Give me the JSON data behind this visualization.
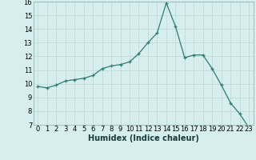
{
  "xlabel": "Humidex (Indice chaleur)",
  "ylabel": "",
  "x": [
    0,
    1,
    2,
    3,
    4,
    5,
    6,
    7,
    8,
    9,
    10,
    11,
    12,
    13,
    14,
    15,
    16,
    17,
    18,
    19,
    20,
    21,
    22,
    23
  ],
  "y": [
    9.8,
    9.7,
    9.9,
    10.2,
    10.3,
    10.4,
    10.6,
    11.1,
    11.3,
    11.4,
    11.6,
    12.2,
    13.0,
    13.7,
    15.9,
    14.2,
    11.9,
    12.1,
    12.1,
    11.1,
    9.9,
    8.6,
    7.8,
    6.8
  ],
  "line_color": "#2e7d6e",
  "bg_color": "#d6eeee",
  "grid_color": "#c4dada",
  "ylim": [
    7,
    16
  ],
  "yticks": [
    7,
    8,
    9,
    10,
    11,
    12,
    13,
    14,
    15,
    16
  ],
  "xlim": [
    -0.5,
    23.5
  ],
  "tick_fontsize": 6.0,
  "xlabel_fontsize": 7.0,
  "xlabel_fontweight": "bold"
}
